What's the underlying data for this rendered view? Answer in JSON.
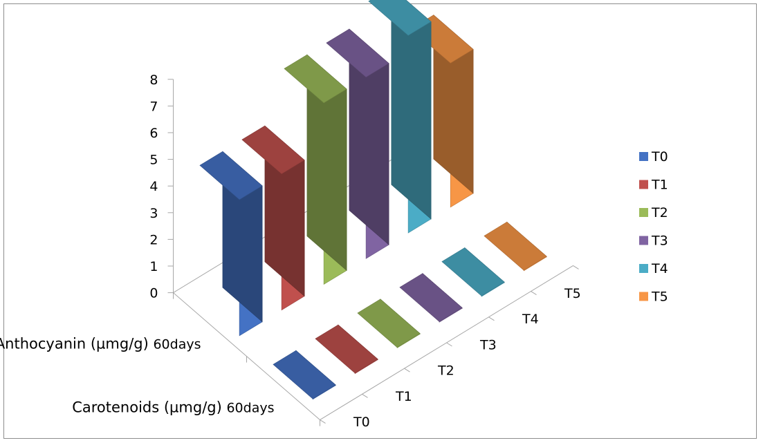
{
  "chart_data": {
    "type": "bar",
    "subtype": "3d-column",
    "title": "",
    "categories": [
      "Anthocyanin  (µmg/g) 60days",
      "Carotenoids  (µmg/g)  60days"
    ],
    "series": [
      {
        "name": "T0",
        "values": [
          5.1,
          0
        ]
      },
      {
        "name": "T1",
        "values": [
          5.1,
          0
        ]
      },
      {
        "name": "T2",
        "values": [
          6.8,
          0
        ]
      },
      {
        "name": "T3",
        "values": [
          6.8,
          0
        ]
      },
      {
        "name": "T4",
        "values": [
          7.4,
          0
        ]
      },
      {
        "name": "T5",
        "values": [
          5.4,
          0
        ]
      }
    ],
    "colors": [
      "#4472C4",
      "#C0504D",
      "#9BBB59",
      "#8064A2",
      "#4BACC6",
      "#F79646"
    ],
    "yticks": [
      "0",
      "1",
      "2",
      "3",
      "4",
      "5",
      "6",
      "7",
      "8"
    ],
    "ylim": [
      0,
      8
    ],
    "depth_ticks": [
      "T0",
      "T1",
      "T2",
      "T3",
      "T4",
      "T5"
    ],
    "legend": {
      "position": "right",
      "entries": [
        "T0",
        "T1",
        "T2",
        "T3",
        "T4",
        "T5"
      ]
    },
    "grid": false
  }
}
